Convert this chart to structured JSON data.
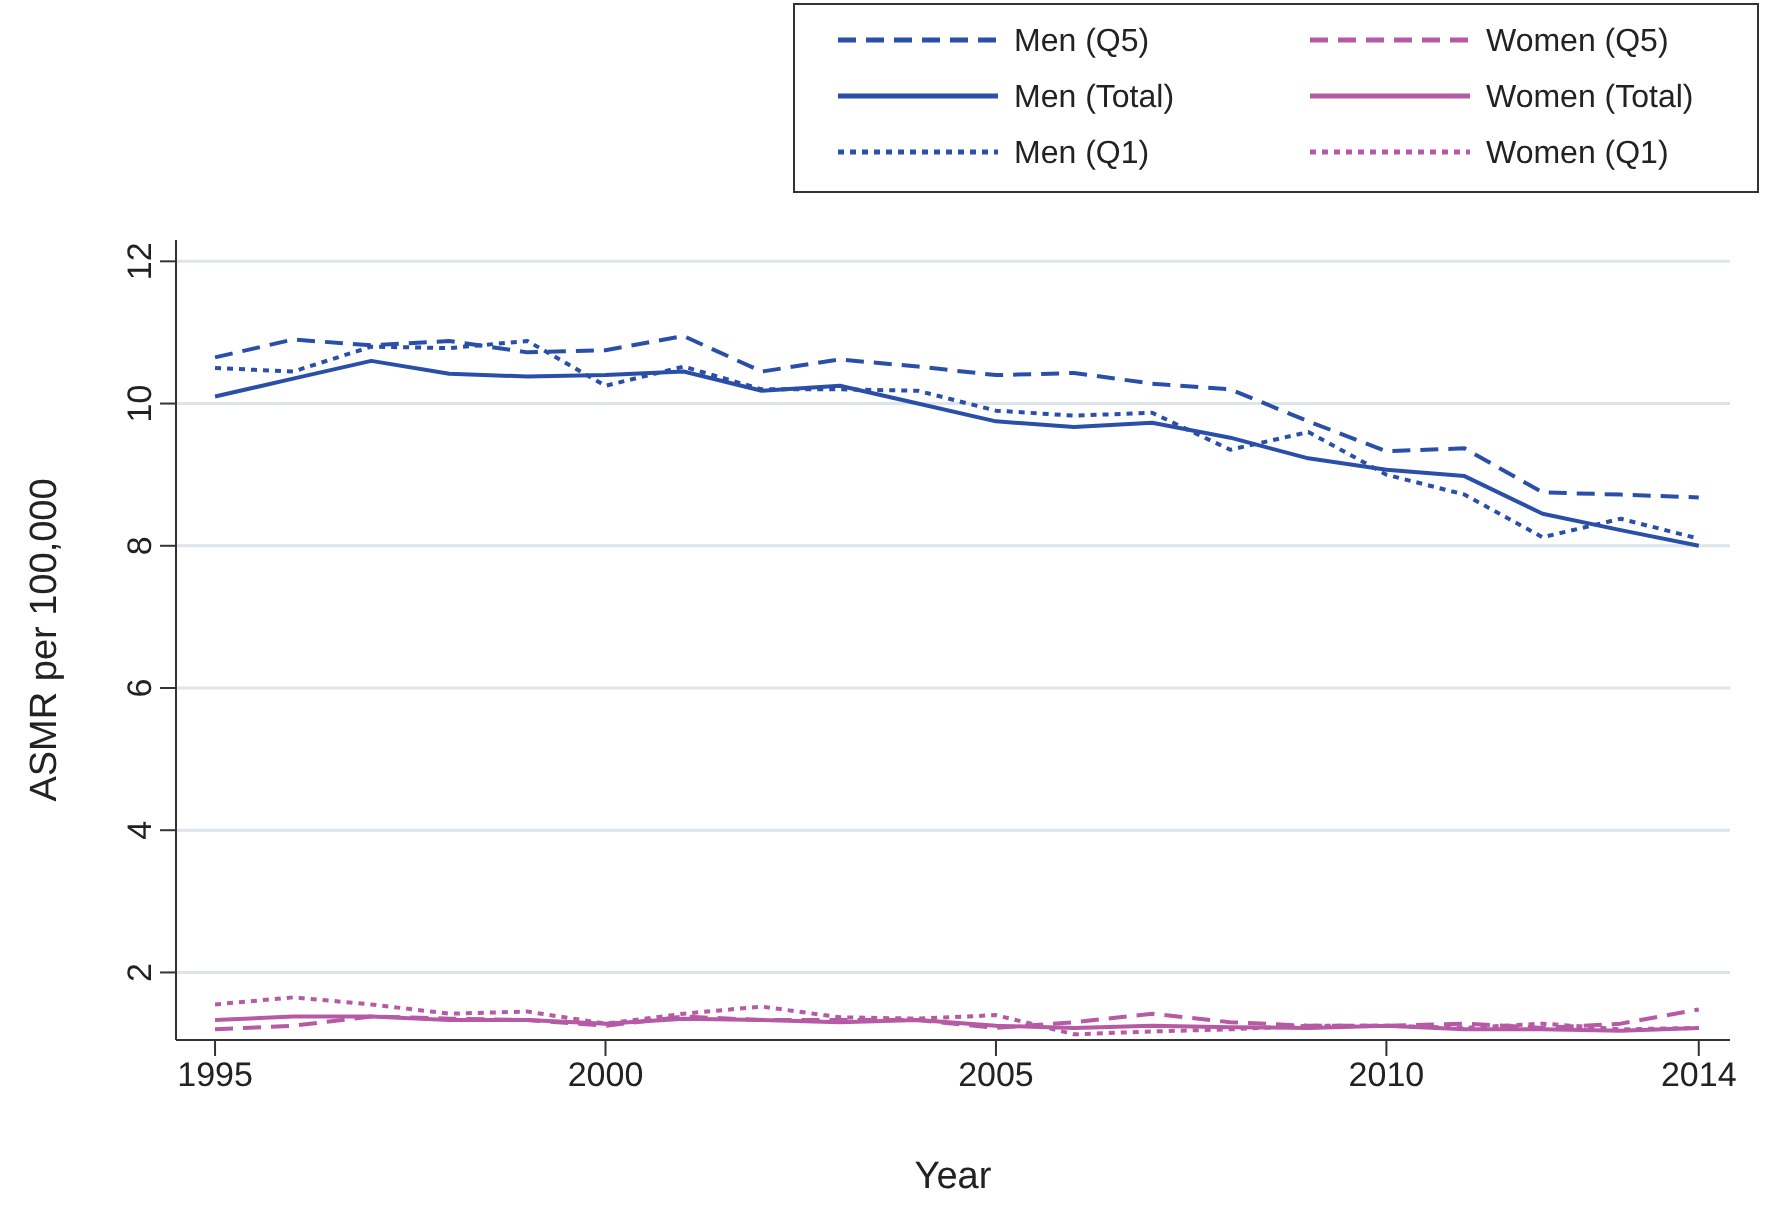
{
  "chart_data": {
    "type": "line",
    "xlabel": "Year",
    "ylabel": "ASMR per 100,000",
    "x": [
      1995,
      1996,
      1997,
      1998,
      1999,
      2000,
      2001,
      2002,
      2003,
      2004,
      2005,
      2006,
      2007,
      2008,
      2009,
      2010,
      2011,
      2012,
      2013,
      2014
    ],
    "xlim": [
      1994.5,
      2014.4
    ],
    "xticks": [
      1995,
      2000,
      2005,
      2010,
      2014
    ],
    "ylim": [
      1.05,
      12.3
    ],
    "yticks": [
      2,
      4,
      6,
      8,
      10,
      12
    ],
    "grid": "y",
    "legend": "top right",
    "marker": "none",
    "series": [
      {
        "name": "Men (Q5)",
        "color": "#2a4fa8",
        "line_style": "dashed",
        "values": [
          10.65,
          10.9,
          10.82,
          10.88,
          10.72,
          10.75,
          10.95,
          10.45,
          10.62,
          10.52,
          10.4,
          10.43,
          10.28,
          10.2,
          9.75,
          9.33,
          9.37,
          8.75,
          8.72,
          8.68
        ]
      },
      {
        "name": "Men (Total)",
        "color": "#2a4fa8",
        "line_style": "solid",
        "values": [
          10.1,
          10.35,
          10.6,
          10.42,
          10.38,
          10.4,
          10.45,
          10.18,
          10.25,
          10.0,
          9.75,
          9.67,
          9.73,
          9.52,
          9.23,
          9.07,
          8.98,
          8.45,
          8.22,
          8.0
        ]
      },
      {
        "name": "Men (Q1)",
        "color": "#2a4fa8",
        "line_style": "dotted",
        "values": [
          10.5,
          10.45,
          10.8,
          10.78,
          10.88,
          10.25,
          10.52,
          10.2,
          10.2,
          10.18,
          9.9,
          9.83,
          9.87,
          9.35,
          9.6,
          9.0,
          8.72,
          8.12,
          8.38,
          8.1
        ]
      },
      {
        "name": "Women (Q5)",
        "color": "#b65aa6",
        "line_style": "dashed",
        "values": [
          1.2,
          1.25,
          1.38,
          1.35,
          1.33,
          1.25,
          1.38,
          1.33,
          1.33,
          1.33,
          1.22,
          1.3,
          1.42,
          1.3,
          1.25,
          1.25,
          1.28,
          1.22,
          1.28,
          1.48
        ]
      },
      {
        "name": "Women (Total)",
        "color": "#b65aa6",
        "line_style": "solid",
        "values": [
          1.33,
          1.38,
          1.38,
          1.33,
          1.33,
          1.28,
          1.35,
          1.33,
          1.3,
          1.33,
          1.25,
          1.22,
          1.25,
          1.23,
          1.22,
          1.25,
          1.2,
          1.2,
          1.18,
          1.22
        ]
      },
      {
        "name": "Women (Q1)",
        "color": "#b65aa6",
        "line_style": "dotted",
        "values": [
          1.55,
          1.65,
          1.55,
          1.42,
          1.45,
          1.28,
          1.42,
          1.52,
          1.37,
          1.35,
          1.4,
          1.13,
          1.17,
          1.2,
          1.25,
          1.25,
          1.22,
          1.28,
          1.2,
          1.22
        ]
      }
    ]
  }
}
